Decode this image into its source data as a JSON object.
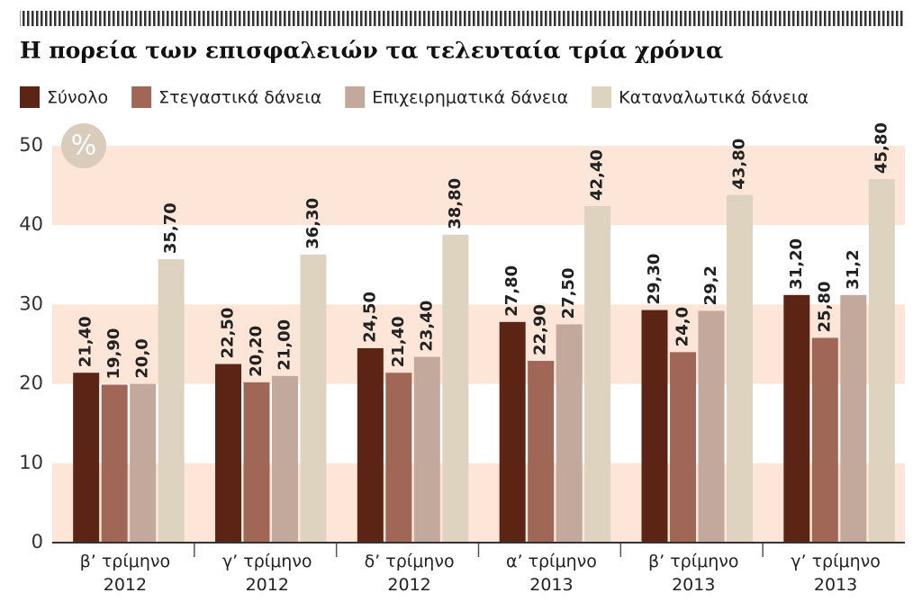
{
  "chart_data": {
    "type": "bar",
    "title": "Η πορεία των επισφαλειών τα τελευταία τρία χρόνια",
    "unit": "%",
    "categories": [
      [
        "β’ τρίμηνο",
        "2012"
      ],
      [
        "γ’ τρίμηνο",
        "2012"
      ],
      [
        "δ’ τρίμηνο",
        "2012"
      ],
      [
        "α’ τρίμηνο",
        "2013"
      ],
      [
        "β’ τρίμηνο",
        "2013"
      ],
      [
        "γ’ τρίμηνο",
        "2013"
      ]
    ],
    "series": [
      {
        "name": "Σύνολο",
        "color": "#5b2415",
        "values": [
          21.4,
          22.5,
          24.5,
          27.8,
          29.3,
          31.2
        ],
        "value_labels": [
          "21,40",
          "22,50",
          "24,50",
          "27,80",
          "29,30",
          "31,20"
        ]
      },
      {
        "name": "Στεγαστικά δάνεια",
        "color": "#a06756",
        "values": [
          19.9,
          20.2,
          21.4,
          22.9,
          24.0,
          25.8
        ],
        "value_labels": [
          "19,90",
          "20,20",
          "21,40",
          "22,90",
          "24,0",
          "25,80"
        ]
      },
      {
        "name": "Επιχειρηματικά δάνεια",
        "color": "#c3a89c",
        "values": [
          20.0,
          21.0,
          23.4,
          27.5,
          29.2,
          31.2
        ],
        "value_labels": [
          "20,0",
          "21,00",
          "23,40",
          "27,50",
          "29,2",
          "31,2"
        ]
      },
      {
        "name": "Καταναλωτικά δάνεια",
        "color": "#ddd3be",
        "values": [
          35.7,
          36.3,
          38.8,
          42.4,
          43.8,
          45.8
        ],
        "value_labels": [
          "35,70",
          "36,30",
          "38,80",
          "42,40",
          "43,80",
          "45,80"
        ]
      }
    ],
    "ylim": [
      0,
      50
    ],
    "yticks": [
      0,
      10,
      20,
      30,
      40,
      50
    ],
    "grid": true,
    "legend": "top"
  }
}
